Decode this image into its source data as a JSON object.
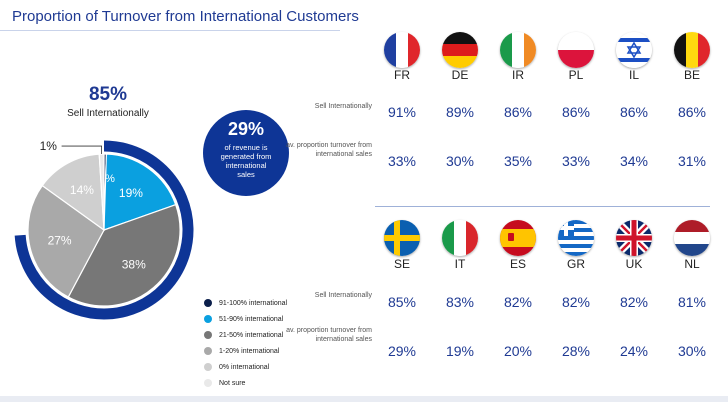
{
  "page": {
    "title": "Proportion of Turnover from International Customers",
    "headline_pct": "85%",
    "headline_label": "Sell Internationally",
    "bubble_pct": "29%",
    "bubble_text": "of revenue is generated from international sales",
    "row_label_sell": "Sell Internationally",
    "row_label_avg": "av. proportion turnover from international sales"
  },
  "chart_data": {
    "type": "pie",
    "slices": [
      {
        "label": "91-100% international",
        "value": 0.5,
        "display": "",
        "color": "#0b1f4b"
      },
      {
        "label": "51-90% international",
        "value": 19,
        "display": "19%",
        "color": "#0aa0e0"
      },
      {
        "label": "21-50% international",
        "value": 38,
        "display": "38%",
        "color": "#777777"
      },
      {
        "label": "1-20% international",
        "value": 27,
        "display": "27%",
        "color": "#a9a9a9"
      },
      {
        "label": "0% international",
        "value": 14,
        "display": "14%",
        "color": "#cfcfcf"
      },
      {
        "label": "Not sure",
        "value": 1,
        "display": "1%",
        "color": "#e9e9e9"
      }
    ],
    "edge_label": "%"
  },
  "countries": [
    {
      "code": "FR",
      "flag": "fr-flag",
      "sell": "91%",
      "avg": "33%"
    },
    {
      "code": "DE",
      "flag": "de-flag",
      "sell": "89%",
      "avg": "30%"
    },
    {
      "code": "IR",
      "flag": "ie-flag",
      "sell": "86%",
      "avg": "35%"
    },
    {
      "code": "PL",
      "flag": "pl-flag",
      "sell": "86%",
      "avg": "33%"
    },
    {
      "code": "IL",
      "flag": "il-flag",
      "sell": "86%",
      "avg": "34%"
    },
    {
      "code": "BE",
      "flag": "be-flag",
      "sell": "86%",
      "avg": "31%"
    },
    {
      "code": "SE",
      "flag": "se-flag",
      "sell": "85%",
      "avg": "29%"
    },
    {
      "code": "IT",
      "flag": "it-flag",
      "sell": "83%",
      "avg": "19%"
    },
    {
      "code": "ES",
      "flag": "es-flag",
      "sell": "82%",
      "avg": "20%"
    },
    {
      "code": "GR",
      "flag": "gr-flag",
      "sell": "82%",
      "avg": "28%"
    },
    {
      "code": "UK",
      "flag": "uk-flag",
      "sell": "82%",
      "avg": "24%"
    },
    {
      "code": "NL",
      "flag": "nl-flag",
      "sell": "81%",
      "avg": "30%"
    }
  ],
  "colors": {
    "accent": "#1f3a93",
    "ring": "#0e3596"
  }
}
